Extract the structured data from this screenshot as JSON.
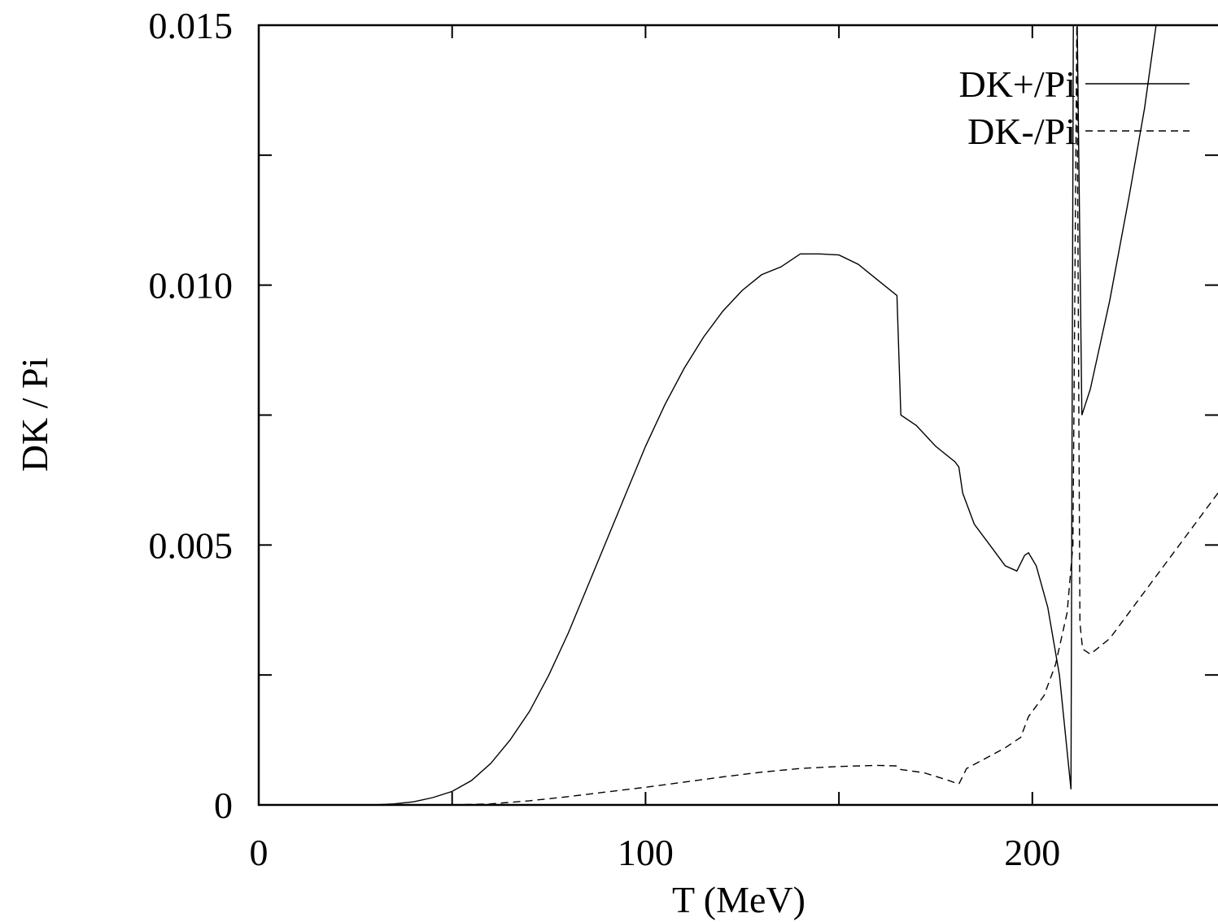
{
  "chart_data": {
    "type": "line",
    "title": "",
    "xlabel": "T (MeV)",
    "ylabel": "DK / Pi",
    "xlim": [
      0,
      248
    ],
    "ylim": [
      0,
      0.015
    ],
    "x_ticks": [
      0,
      50,
      100,
      150,
      200
    ],
    "x_tick_labels": [
      "0",
      "",
      "100",
      "",
      "200"
    ],
    "y_ticks": [
      0,
      0.0025,
      0.005,
      0.0075,
      0.01,
      0.0125,
      0.015
    ],
    "y_tick_labels": [
      "0",
      "",
      "0.005",
      "",
      "0.010",
      "",
      "0.015"
    ],
    "grid": false,
    "legend_position": "top-right",
    "series": [
      {
        "name": "DK+/Pi",
        "style": "solid",
        "points": [
          [
            30,
            0.0
          ],
          [
            35,
            2e-05
          ],
          [
            40,
            6e-05
          ],
          [
            45,
            0.00014
          ],
          [
            50,
            0.00026
          ],
          [
            55,
            0.00047
          ],
          [
            60,
            0.0008
          ],
          [
            65,
            0.00125
          ],
          [
            70,
            0.0018
          ],
          [
            75,
            0.0025
          ],
          [
            80,
            0.0033
          ],
          [
            85,
            0.0042
          ],
          [
            90,
            0.0051
          ],
          [
            95,
            0.006
          ],
          [
            100,
            0.0069
          ],
          [
            105,
            0.0077
          ],
          [
            110,
            0.0084
          ],
          [
            115,
            0.009
          ],
          [
            120,
            0.0095
          ],
          [
            125,
            0.0099
          ],
          [
            130,
            0.0102
          ],
          [
            135,
            0.01035
          ],
          [
            140,
            0.0106
          ],
          [
            145,
            0.0106
          ],
          [
            150,
            0.01058
          ],
          [
            155,
            0.0104
          ],
          [
            160,
            0.0101
          ],
          [
            165,
            0.0098
          ],
          [
            166,
            0.0075
          ],
          [
            170,
            0.0073
          ],
          [
            175,
            0.0069
          ],
          [
            180,
            0.0066
          ],
          [
            181,
            0.0065
          ],
          [
            182,
            0.006
          ],
          [
            185,
            0.0054
          ],
          [
            190,
            0.0049
          ],
          [
            193,
            0.0046
          ],
          [
            196,
            0.0045
          ],
          [
            198,
            0.0048
          ],
          [
            199,
            0.00485
          ],
          [
            201,
            0.0046
          ],
          [
            204,
            0.0038
          ],
          [
            207,
            0.0025
          ],
          [
            210,
            0.0003
          ],
          [
            210.6,
            0.015
          ],
          [
            211.6,
            0.015
          ],
          [
            212.8,
            0.0075
          ],
          [
            215,
            0.008
          ],
          [
            220,
            0.0097
          ],
          [
            225,
            0.0117
          ],
          [
            229,
            0.0134
          ],
          [
            232,
            0.015
          ]
        ]
      },
      {
        "name": "DK-/Pi",
        "style": "dashed",
        "points": [
          [
            50,
            0.0
          ],
          [
            60,
            2e-05
          ],
          [
            70,
            8e-05
          ],
          [
            80,
            0.00016
          ],
          [
            90,
            0.00025
          ],
          [
            100,
            0.00034
          ],
          [
            110,
            0.00044
          ],
          [
            120,
            0.00054
          ],
          [
            130,
            0.00063
          ],
          [
            140,
            0.0007
          ],
          [
            150,
            0.00074
          ],
          [
            160,
            0.00076
          ],
          [
            165,
            0.00075
          ],
          [
            166,
            0.00068
          ],
          [
            172,
            0.00062
          ],
          [
            178,
            0.00048
          ],
          [
            181,
            0.0004
          ],
          [
            183,
            0.0007
          ],
          [
            188,
            0.0009
          ],
          [
            193,
            0.0011
          ],
          [
            197,
            0.0013
          ],
          [
            199,
            0.0017
          ],
          [
            203,
            0.0021
          ],
          [
            206,
            0.0027
          ],
          [
            209,
            0.0037
          ],
          [
            210.5,
            0.005
          ],
          [
            211.5,
            0.015
          ],
          [
            212.3,
            0.0035
          ],
          [
            213,
            0.003
          ],
          [
            215,
            0.0029
          ],
          [
            220,
            0.0032
          ],
          [
            225,
            0.0037
          ],
          [
            230,
            0.0042
          ],
          [
            235,
            0.0047
          ],
          [
            240,
            0.0052
          ],
          [
            245,
            0.0057
          ],
          [
            248,
            0.006
          ]
        ]
      }
    ]
  }
}
